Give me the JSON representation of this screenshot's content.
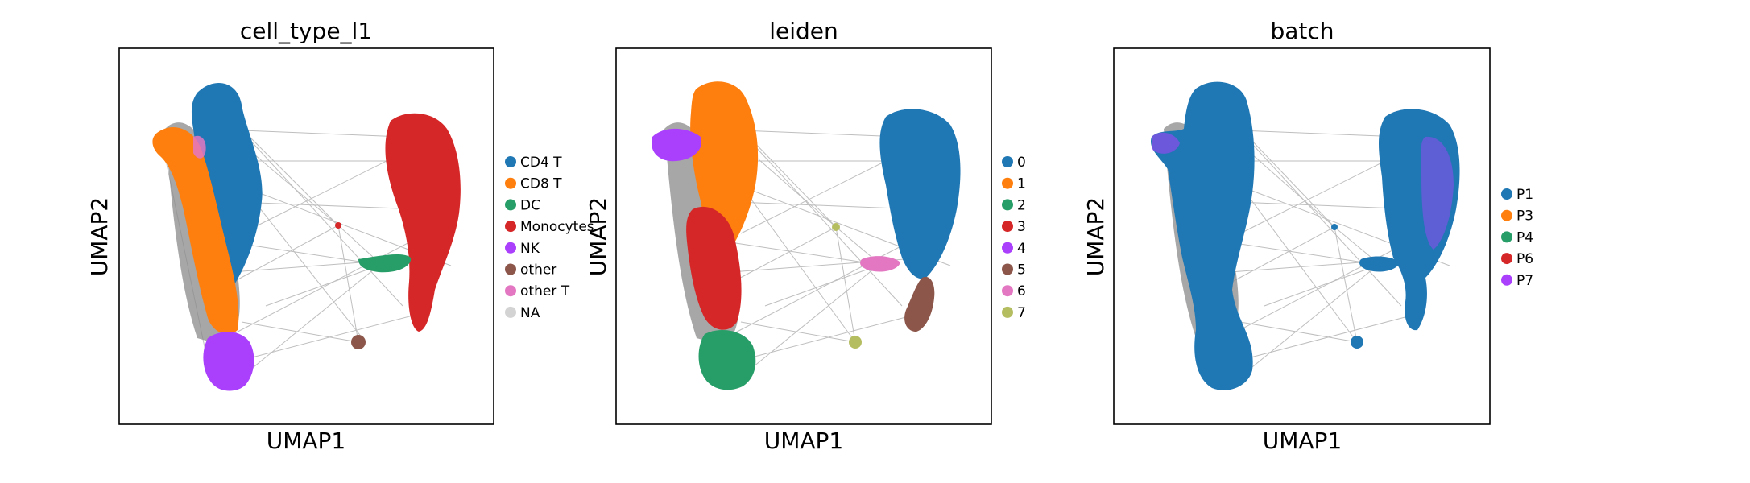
{
  "figure": {
    "panels_count": 3
  },
  "chart_data": [
    {
      "type": "scatter",
      "title": "cell_type_l1",
      "xlabel": "UMAP1",
      "ylabel": "UMAP2",
      "ticks": false,
      "legend_placement": "right",
      "legend": [
        {
          "label": "CD4 T",
          "color": "#1f77b4"
        },
        {
          "label": "CD8 T",
          "color": "#ff7f0e"
        },
        {
          "label": "DC",
          "color": "#279e68"
        },
        {
          "label": "Monocytes",
          "color": "#d62728"
        },
        {
          "label": "NK",
          "color": "#aa40fc"
        },
        {
          "label": "other",
          "color": "#8c564b"
        },
        {
          "label": "other T",
          "color": "#e377c2"
        },
        {
          "label": "NA",
          "color": "#d3d3d3"
        }
      ]
    },
    {
      "type": "scatter",
      "title": "leiden",
      "xlabel": "UMAP1",
      "ylabel": "UMAP2",
      "ticks": false,
      "legend_placement": "right",
      "legend": [
        {
          "label": "0",
          "color": "#1f77b4"
        },
        {
          "label": "1",
          "color": "#ff7f0e"
        },
        {
          "label": "2",
          "color": "#279e68"
        },
        {
          "label": "3",
          "color": "#d62728"
        },
        {
          "label": "4",
          "color": "#aa40fc"
        },
        {
          "label": "5",
          "color": "#8c564b"
        },
        {
          "label": "6",
          "color": "#e377c2"
        },
        {
          "label": "7",
          "color": "#b5bd61"
        }
      ]
    },
    {
      "type": "scatter",
      "title": "batch",
      "xlabel": "UMAP1",
      "ylabel": "UMAP2",
      "ticks": false,
      "legend_placement": "right",
      "legend": [
        {
          "label": "P1",
          "color": "#1f77b4"
        },
        {
          "label": "P3",
          "color": "#ff7f0e"
        },
        {
          "label": "P4",
          "color": "#279e68"
        },
        {
          "label": "P6",
          "color": "#d62728"
        },
        {
          "label": "P7",
          "color": "#aa40fc"
        }
      ]
    }
  ]
}
